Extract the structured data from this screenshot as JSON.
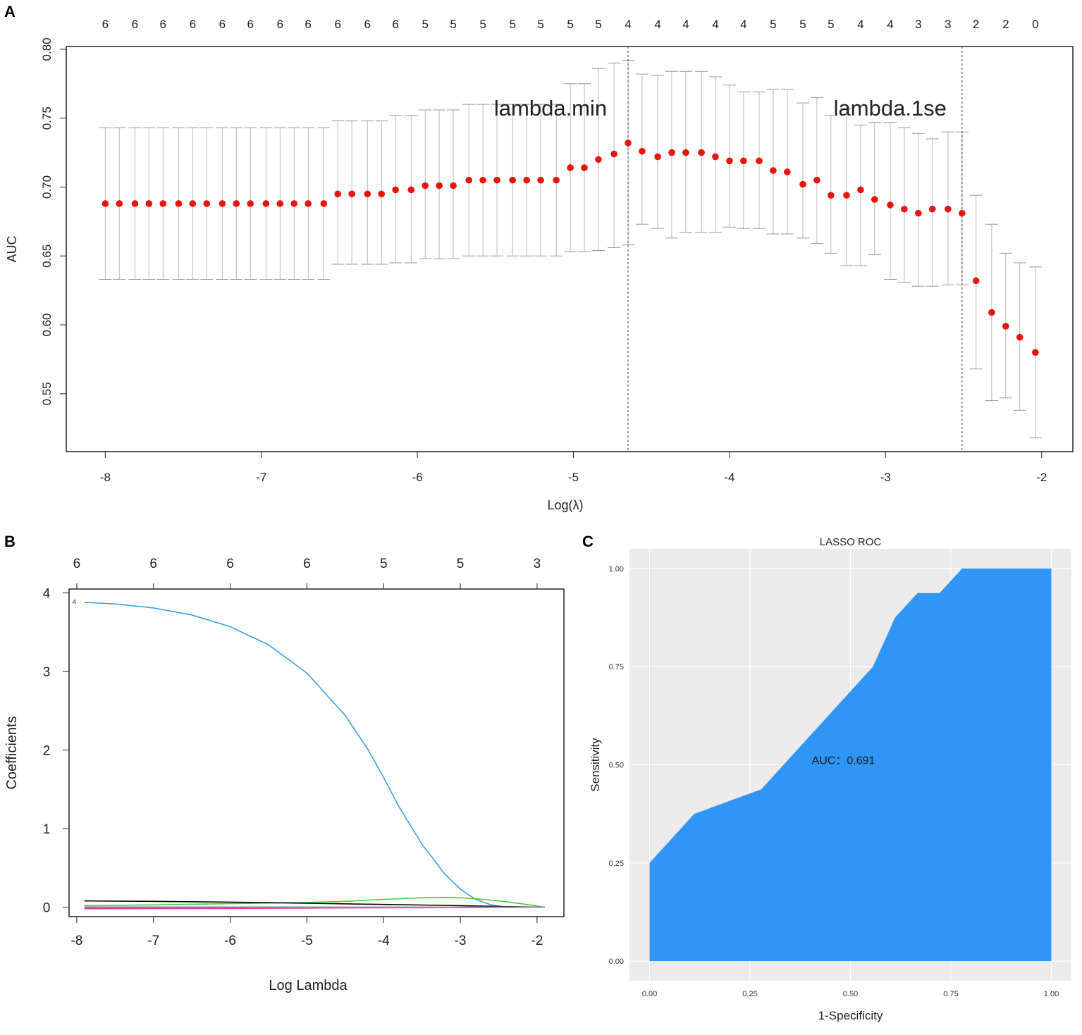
{
  "panel_labels": {
    "a": "A",
    "b": "B",
    "c": "C"
  },
  "chart_data": [
    {
      "type": "scatter",
      "panel": "A",
      "xlabel": "Log(λ)",
      "ylabel": "AUC",
      "xlim": [
        -8.25,
        -1.8
      ],
      "ylim": [
        0.508,
        0.802
      ],
      "xticks": [
        "-8",
        "-7",
        "-6",
        "-5",
        "-4",
        "-3",
        "-2"
      ],
      "yticks": [
        "0.55",
        "0.60",
        "0.65",
        "0.70",
        "0.75",
        "0.80"
      ],
      "lines": [
        {
          "label": "lambda.min",
          "x": -4.65
        },
        {
          "label": "lambda.1se",
          "x": -2.51
        }
      ],
      "top_counts": [
        {
          "x": -8.0,
          "n": "6"
        },
        {
          "x": -7.81,
          "n": "6"
        },
        {
          "x": -7.63,
          "n": "6"
        },
        {
          "x": -7.44,
          "n": "6"
        },
        {
          "x": -7.25,
          "n": "6"
        },
        {
          "x": -7.07,
          "n": "6"
        },
        {
          "x": -6.88,
          "n": "6"
        },
        {
          "x": -6.7,
          "n": "6"
        },
        {
          "x": -6.51,
          "n": "6"
        },
        {
          "x": -6.32,
          "n": "6"
        },
        {
          "x": -6.14,
          "n": "6"
        },
        {
          "x": -5.95,
          "n": "5"
        },
        {
          "x": -5.77,
          "n": "5"
        },
        {
          "x": -5.58,
          "n": "5"
        },
        {
          "x": -5.39,
          "n": "5"
        },
        {
          "x": -5.21,
          "n": "5"
        },
        {
          "x": -5.02,
          "n": "5"
        },
        {
          "x": -4.84,
          "n": "5"
        },
        {
          "x": -4.65,
          "n": "4"
        },
        {
          "x": -4.46,
          "n": "4"
        },
        {
          "x": -4.28,
          "n": "4"
        },
        {
          "x": -4.09,
          "n": "4"
        },
        {
          "x": -3.91,
          "n": "4"
        },
        {
          "x": -3.72,
          "n": "5"
        },
        {
          "x": -3.53,
          "n": "5"
        },
        {
          "x": -3.35,
          "n": "5"
        },
        {
          "x": -3.16,
          "n": "4"
        },
        {
          "x": -2.97,
          "n": "4"
        },
        {
          "x": -2.79,
          "n": "3"
        },
        {
          "x": -2.6,
          "n": "3"
        },
        {
          "x": -2.42,
          "n": "2"
        },
        {
          "x": -2.23,
          "n": "2"
        },
        {
          "x": -2.04,
          "n": "0"
        }
      ],
      "x": [
        -8.0,
        -7.91,
        -7.81,
        -7.72,
        -7.63,
        -7.53,
        -7.44,
        -7.35,
        -7.25,
        -7.16,
        -7.07,
        -6.97,
        -6.88,
        -6.79,
        -6.7,
        -6.6,
        -6.51,
        -6.42,
        -6.32,
        -6.23,
        -6.14,
        -6.04,
        -5.95,
        -5.86,
        -5.77,
        -5.67,
        -5.58,
        -5.49,
        -5.39,
        -5.3,
        -5.21,
        -5.11,
        -5.02,
        -4.93,
        -4.84,
        -4.74,
        -4.65,
        -4.56,
        -4.46,
        -4.37,
        -4.28,
        -4.18,
        -4.09,
        -4.0,
        -3.91,
        -3.81,
        -3.72,
        -3.63,
        -3.53,
        -3.44,
        -3.35,
        -3.25,
        -3.16,
        -3.07,
        -2.97,
        -2.88,
        -2.79,
        -2.7,
        -2.6,
        -2.51,
        -2.42,
        -2.32,
        -2.23,
        -2.14,
        -2.04
      ],
      "y": [
        0.688,
        0.688,
        0.688,
        0.688,
        0.688,
        0.688,
        0.688,
        0.688,
        0.688,
        0.688,
        0.688,
        0.688,
        0.688,
        0.688,
        0.688,
        0.688,
        0.695,
        0.695,
        0.695,
        0.695,
        0.698,
        0.698,
        0.701,
        0.701,
        0.701,
        0.705,
        0.705,
        0.705,
        0.705,
        0.705,
        0.705,
        0.705,
        0.714,
        0.714,
        0.72,
        0.724,
        0.732,
        0.726,
        0.722,
        0.725,
        0.725,
        0.725,
        0.722,
        0.719,
        0.719,
        0.719,
        0.712,
        0.711,
        0.702,
        0.705,
        0.694,
        0.694,
        0.698,
        0.691,
        0.687,
        0.684,
        0.681,
        0.684,
        0.684,
        0.681,
        0.632,
        0.609,
        0.599,
        0.591,
        0.58
      ],
      "upper": [
        0.743,
        0.743,
        0.743,
        0.743,
        0.743,
        0.743,
        0.743,
        0.743,
        0.743,
        0.743,
        0.743,
        0.743,
        0.743,
        0.743,
        0.743,
        0.743,
        0.748,
        0.748,
        0.748,
        0.748,
        0.752,
        0.752,
        0.756,
        0.756,
        0.756,
        0.76,
        0.76,
        0.76,
        0.76,
        0.76,
        0.76,
        0.76,
        0.775,
        0.775,
        0.786,
        0.79,
        0.792,
        0.782,
        0.781,
        0.784,
        0.784,
        0.784,
        0.78,
        0.774,
        0.769,
        0.769,
        0.771,
        0.771,
        0.761,
        0.765,
        0.752,
        0.757,
        0.745,
        0.747,
        0.747,
        0.743,
        0.739,
        0.735,
        0.74,
        0.74,
        0.694,
        0.673,
        0.652,
        0.645,
        0.642
      ],
      "lower": [
        0.633,
        0.633,
        0.633,
        0.633,
        0.633,
        0.633,
        0.633,
        0.633,
        0.633,
        0.633,
        0.633,
        0.633,
        0.633,
        0.633,
        0.633,
        0.633,
        0.644,
        0.644,
        0.644,
        0.644,
        0.645,
        0.645,
        0.648,
        0.648,
        0.648,
        0.65,
        0.65,
        0.65,
        0.65,
        0.65,
        0.65,
        0.65,
        0.653,
        0.653,
        0.654,
        0.656,
        0.658,
        0.673,
        0.67,
        0.663,
        0.667,
        0.667,
        0.667,
        0.671,
        0.67,
        0.67,
        0.666,
        0.666,
        0.663,
        0.659,
        0.652,
        0.643,
        0.643,
        0.651,
        0.633,
        0.631,
        0.628,
        0.628,
        0.629,
        0.629,
        0.568,
        0.545,
        0.547,
        0.538,
        0.518
      ]
    },
    {
      "type": "line",
      "panel": "B",
      "xlabel": "Log Lambda",
      "ylabel": "Coefficients",
      "xlim": [
        -8.1,
        -1.65
      ],
      "ylim": [
        -0.12,
        4.05
      ],
      "xticks": [
        "-8",
        "-7",
        "-6",
        "-5",
        "-4",
        "-3",
        "-2"
      ],
      "yticks": [
        "0",
        "1",
        "2",
        "3",
        "4"
      ],
      "top_counts": [
        {
          "x": -8.0,
          "n": "6"
        },
        {
          "x": -7.0,
          "n": "6"
        },
        {
          "x": -6.0,
          "n": "6"
        },
        {
          "x": -5.0,
          "n": "6"
        },
        {
          "x": -4.0,
          "n": "5"
        },
        {
          "x": -3.0,
          "n": "5"
        },
        {
          "x": -2.0,
          "n": "3"
        }
      ],
      "line_labels": [
        {
          "x": -8.0,
          "y": 3.9,
          "text": "4"
        }
      ],
      "series": [
        {
          "color": "#3aa0e8",
          "x": [
            -7.9,
            -7.5,
            -7.0,
            -6.5,
            -6.0,
            -5.5,
            -5.0,
            -4.5,
            -4.2,
            -4.0,
            -3.8,
            -3.5,
            -3.2,
            -3.0,
            -2.8,
            -2.6,
            -2.4
          ],
          "y": [
            3.88,
            3.86,
            3.81,
            3.72,
            3.57,
            3.34,
            2.98,
            2.44,
            2.0,
            1.65,
            1.28,
            0.8,
            0.42,
            0.23,
            0.1,
            0.03,
            0.0
          ]
        },
        {
          "color": "#3fcf3f",
          "x": [
            -7.9,
            -7.0,
            -6.0,
            -5.0,
            -4.5,
            -4.0,
            -3.5,
            -3.2,
            -3.0,
            -2.7,
            -2.4,
            -2.1,
            -1.9
          ],
          "y": [
            0.02,
            0.03,
            0.045,
            0.06,
            0.075,
            0.1,
            0.12,
            0.125,
            0.12,
            0.1,
            0.07,
            0.03,
            0.0
          ]
        },
        {
          "color": "#000000",
          "x": [
            -7.9,
            -7.0,
            -6.0,
            -5.0,
            -4.0,
            -3.0,
            -2.5,
            -2.0,
            -1.9
          ],
          "y": [
            0.08,
            0.075,
            0.065,
            0.05,
            0.035,
            0.02,
            0.01,
            0.002,
            0.0
          ]
        },
        {
          "color": "#6a4fd0",
          "x": [
            -7.9,
            -6.0,
            -4.0,
            -2.0,
            -1.9
          ],
          "y": [
            -0.01,
            -0.008,
            -0.005,
            0.0,
            0.0
          ]
        },
        {
          "color": "#e0408a",
          "x": [
            -7.9,
            -6.0,
            -4.0,
            -2.0,
            -1.9
          ],
          "y": [
            -0.02,
            -0.015,
            -0.008,
            -0.002,
            0.0
          ]
        },
        {
          "color": "#9aa3ad",
          "x": [
            -7.9,
            -6.0,
            -4.0,
            -2.0,
            -1.9
          ],
          "y": [
            0.005,
            0.004,
            0.003,
            0.001,
            0.0
          ]
        }
      ]
    },
    {
      "type": "area",
      "panel": "C",
      "title": "LASSO ROC",
      "xlabel": "1-Specificity",
      "ylabel": "Sensitivity",
      "xlim": [
        -0.05,
        1.05
      ],
      "ylim": [
        -0.05,
        1.05
      ],
      "xticks": [
        "0.00",
        "0.25",
        "0.50",
        "0.75",
        "1.00"
      ],
      "yticks": [
        "0.00",
        "0.25",
        "0.50",
        "0.75",
        "1.00"
      ],
      "annotation": "AUC：0.691",
      "fill_color": "#2f96f5",
      "background": "#ebebeb",
      "x": [
        0.0,
        0.0,
        0.111,
        0.278,
        0.556,
        0.611,
        0.667,
        0.722,
        0.778,
        1.0,
        1.0
      ],
      "y": [
        0.0,
        0.25,
        0.375,
        0.4375,
        0.75,
        0.875,
        0.9375,
        0.9375,
        1.0,
        1.0,
        0.0
      ]
    }
  ]
}
